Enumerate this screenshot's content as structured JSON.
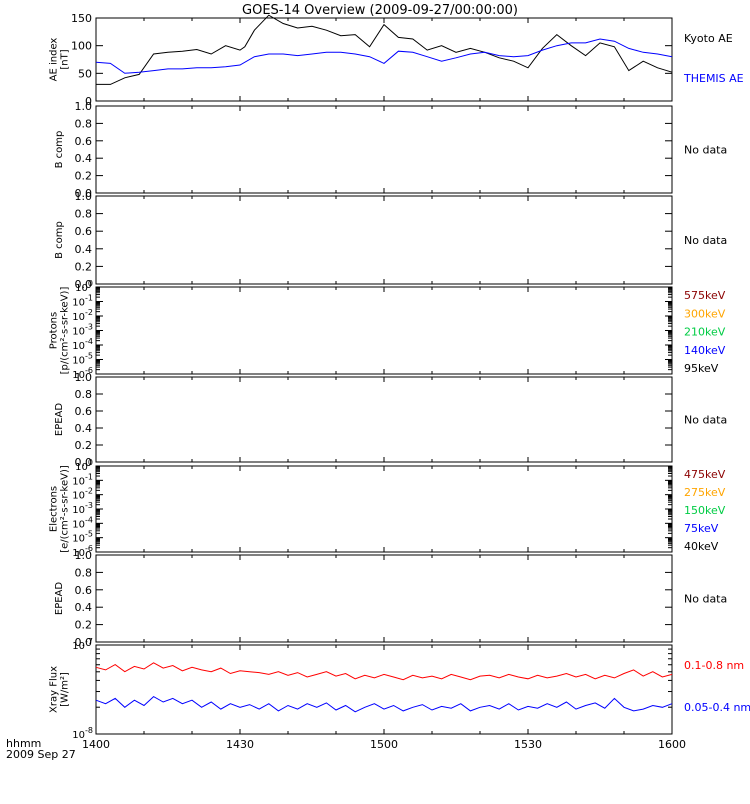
{
  "title": "GOES-14 Overview (2009-09-27/00:00:00)",
  "footer": {
    "time_format": "hhmm",
    "date": "2009 Sep 27"
  },
  "x_axis": {
    "ticks": [
      {
        "label": "1400",
        "t": 0
      },
      {
        "label": "1430",
        "t": 30
      },
      {
        "label": "1500",
        "t": 60
      },
      {
        "label": "1530",
        "t": 90
      },
      {
        "label": "1600",
        "t": 120
      }
    ],
    "range": [
      0,
      120
    ]
  },
  "chart_data": [
    {
      "type": "line",
      "ylabel": "AE index\n[nT]",
      "ylim": [
        0,
        150
      ],
      "yticks": [
        "0",
        "50",
        "100",
        "150"
      ],
      "series": [
        {
          "name": "Kyoto AE",
          "color": "#000000",
          "x": [
            0,
            3,
            6,
            9,
            12,
            15,
            18,
            21,
            24,
            27,
            30,
            31,
            33,
            36,
            39,
            42,
            45,
            48,
            51,
            54,
            57,
            60,
            63,
            66,
            69,
            72,
            75,
            78,
            81,
            84,
            87,
            90,
            93,
            96,
            99,
            102,
            105,
            108,
            111,
            114,
            117,
            120
          ],
          "values": [
            30,
            30,
            42,
            48,
            85,
            88,
            90,
            93,
            85,
            100,
            92,
            98,
            128,
            155,
            140,
            132,
            135,
            128,
            118,
            120,
            98,
            138,
            115,
            112,
            92,
            100,
            88,
            95,
            88,
            78,
            72,
            60,
            95,
            120,
            100,
            82,
            105,
            98,
            55,
            72,
            60,
            52
          ]
        },
        {
          "name": "THEMIS AE",
          "color": "#0000ff",
          "x": [
            0,
            3,
            6,
            9,
            12,
            15,
            18,
            21,
            24,
            27,
            30,
            33,
            36,
            39,
            42,
            45,
            48,
            51,
            54,
            57,
            60,
            63,
            66,
            69,
            72,
            75,
            78,
            81,
            84,
            87,
            90,
            93,
            96,
            99,
            102,
            105,
            108,
            111,
            114,
            117,
            120
          ],
          "values": [
            70,
            68,
            50,
            52,
            55,
            58,
            58,
            60,
            60,
            62,
            65,
            80,
            85,
            85,
            82,
            85,
            88,
            88,
            85,
            80,
            68,
            90,
            88,
            80,
            72,
            78,
            85,
            88,
            82,
            80,
            82,
            92,
            100,
            105,
            105,
            112,
            108,
            95,
            88,
            85,
            80
          ]
        }
      ]
    },
    {
      "type": "line",
      "ylabel": "B comp",
      "ylim": [
        0,
        1
      ],
      "yticks": [
        "0.0",
        "0.2",
        "0.4",
        "0.6",
        "0.8",
        "1.0"
      ],
      "series": [],
      "note": "No data"
    },
    {
      "type": "line",
      "ylabel": "B comp",
      "ylim": [
        0,
        1
      ],
      "yticks": [
        "0.0",
        "0.2",
        "0.4",
        "0.6",
        "0.8",
        "1.0"
      ],
      "series": [],
      "note": "No data"
    },
    {
      "type": "line",
      "ylabel": "Protons\n[p/(cm²-s-sr-keV)]",
      "scale": "log",
      "ylim_exp": [
        -6,
        0
      ],
      "ytick_exps": [
        0,
        -1,
        -2,
        -3,
        -4,
        -5,
        -6
      ],
      "series": [
        {
          "name": "575keV",
          "color": "#8b0000",
          "values": []
        },
        {
          "name": "300keV",
          "color": "#ffa500",
          "values": []
        },
        {
          "name": "210keV",
          "color": "#00cc44",
          "values": []
        },
        {
          "name": "140keV",
          "color": "#0000ff",
          "values": []
        },
        {
          "name": "95keV",
          "color": "#000000",
          "values": []
        }
      ]
    },
    {
      "type": "line",
      "ylabel": "EPEAD",
      "ylim": [
        0,
        1
      ],
      "yticks": [
        "0.0",
        "0.2",
        "0.4",
        "0.6",
        "0.8",
        "1.0"
      ],
      "series": [],
      "note": "No data"
    },
    {
      "type": "line",
      "ylabel": "Electrons\n[e/(cm²-s-sr-keV)]",
      "scale": "log",
      "ylim_exp": [
        -6,
        0
      ],
      "ytick_exps": [
        0,
        -1,
        -2,
        -3,
        -4,
        -5,
        -6
      ],
      "series": [
        {
          "name": "475keV",
          "color": "#8b0000",
          "values": []
        },
        {
          "name": "275keV",
          "color": "#ffa500",
          "values": []
        },
        {
          "name": "150keV",
          "color": "#00cc44",
          "values": []
        },
        {
          "name": "75keV",
          "color": "#0000ff",
          "values": []
        },
        {
          "name": "40keV",
          "color": "#000000",
          "values": []
        }
      ]
    },
    {
      "type": "line",
      "ylabel": "EPEAD",
      "ylim": [
        0,
        1
      ],
      "yticks": [
        "0.0",
        "0.2",
        "0.4",
        "0.6",
        "0.8",
        "1.0"
      ],
      "series": [],
      "note": "No data"
    },
    {
      "type": "line",
      "ylabel": "Xray Flux\n[W/m²]",
      "scale": "log",
      "ylim_exp": [
        -8,
        -7
      ],
      "ytick_exps": [
        -7,
        -8
      ],
      "series": [
        {
          "name": "0.1-0.8 nm",
          "color": "#ff0000",
          "x": [
            0,
            2,
            4,
            6,
            8,
            10,
            12,
            14,
            16,
            18,
            20,
            22,
            24,
            26,
            28,
            30,
            32,
            34,
            36,
            38,
            40,
            42,
            44,
            46,
            48,
            50,
            52,
            54,
            56,
            58,
            60,
            62,
            64,
            66,
            68,
            70,
            72,
            74,
            76,
            78,
            80,
            82,
            84,
            86,
            88,
            90,
            92,
            94,
            96,
            98,
            100,
            102,
            104,
            106,
            108,
            110,
            112,
            114,
            116,
            118,
            120
          ],
          "values": [
            -7.25,
            -7.28,
            -7.22,
            -7.3,
            -7.24,
            -7.27,
            -7.2,
            -7.26,
            -7.23,
            -7.29,
            -7.25,
            -7.28,
            -7.3,
            -7.26,
            -7.32,
            -7.29,
            -7.3,
            -7.31,
            -7.33,
            -7.3,
            -7.34,
            -7.31,
            -7.36,
            -7.33,
            -7.3,
            -7.35,
            -7.32,
            -7.38,
            -7.34,
            -7.37,
            -7.33,
            -7.36,
            -7.39,
            -7.34,
            -7.37,
            -7.35,
            -7.38,
            -7.33,
            -7.36,
            -7.39,
            -7.35,
            -7.34,
            -7.37,
            -7.33,
            -7.36,
            -7.38,
            -7.34,
            -7.37,
            -7.35,
            -7.32,
            -7.36,
            -7.33,
            -7.38,
            -7.34,
            -7.37,
            -7.32,
            -7.28,
            -7.35,
            -7.3,
            -7.36,
            -7.33
          ]
        },
        {
          "name": "0.05-0.4 nm",
          "color": "#0000ff",
          "x": [
            0,
            2,
            4,
            6,
            8,
            10,
            12,
            14,
            16,
            18,
            20,
            22,
            24,
            26,
            28,
            30,
            32,
            34,
            36,
            38,
            40,
            42,
            44,
            46,
            48,
            50,
            52,
            54,
            56,
            58,
            60,
            62,
            64,
            66,
            68,
            70,
            72,
            74,
            76,
            78,
            80,
            82,
            84,
            86,
            88,
            90,
            92,
            94,
            96,
            98,
            100,
            102,
            104,
            106,
            108,
            110,
            112,
            114,
            116,
            118,
            120
          ],
          "values": [
            -7.62,
            -7.66,
            -7.6,
            -7.7,
            -7.62,
            -7.68,
            -7.58,
            -7.64,
            -7.6,
            -7.66,
            -7.62,
            -7.7,
            -7.64,
            -7.72,
            -7.66,
            -7.7,
            -7.67,
            -7.72,
            -7.66,
            -7.74,
            -7.68,
            -7.72,
            -7.66,
            -7.7,
            -7.65,
            -7.73,
            -7.68,
            -7.75,
            -7.7,
            -7.66,
            -7.72,
            -7.68,
            -7.74,
            -7.7,
            -7.67,
            -7.73,
            -7.69,
            -7.71,
            -7.66,
            -7.74,
            -7.7,
            -7.68,
            -7.72,
            -7.66,
            -7.73,
            -7.69,
            -7.71,
            -7.66,
            -7.7,
            -7.64,
            -7.72,
            -7.68,
            -7.65,
            -7.71,
            -7.6,
            -7.7,
            -7.74,
            -7.72,
            -7.68,
            -7.7,
            -7.66
          ]
        }
      ]
    }
  ]
}
